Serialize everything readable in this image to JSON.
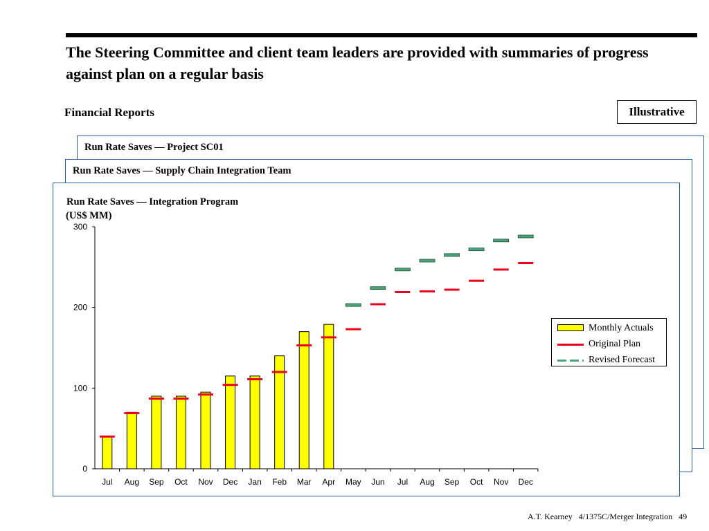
{
  "header": {
    "title": "The Steering Committee and client team leaders are provided with summaries of progress against plan on a regular basis",
    "section": "Financial Reports",
    "badge": "Illustrative"
  },
  "cards": {
    "back_title": "Run Rate Saves — Project SC01",
    "mid_title": "Run Rate Saves — Supply Chain Integration Team",
    "front_title": "Run Rate Saves — Integration Program"
  },
  "chart_data": {
    "type": "bar",
    "title": "Run Rate Saves — Integration Program",
    "ylabel": "(US$ MM)",
    "xlabel": "",
    "ylim": [
      0,
      300
    ],
    "yticks": [
      0,
      100,
      200,
      300
    ],
    "grid": false,
    "legend_position": "right",
    "categories": [
      "Jul",
      "Aug",
      "Sep",
      "Oct",
      "Nov",
      "Dec",
      "Jan",
      "Feb",
      "Mar",
      "Apr",
      "May",
      "Jun",
      "Jul",
      "Aug",
      "Sep",
      "Oct",
      "Nov",
      "Dec"
    ],
    "series": [
      {
        "name": "Monthly Actuals",
        "type": "bar",
        "color": "#ffff00",
        "values": [
          40,
          70,
          90,
          90,
          95,
          115,
          115,
          140,
          170,
          179,
          null,
          null,
          null,
          null,
          null,
          null,
          null,
          null
        ]
      },
      {
        "name": "Original Plan",
        "type": "dash-marker",
        "color": "#e8001c",
        "values": [
          40,
          69,
          87,
          87,
          92,
          104,
          111,
          120,
          153,
          163,
          173,
          204,
          219,
          220,
          222,
          233,
          247,
          255
        ]
      },
      {
        "name": "Revised Forecast",
        "type": "dash-marker",
        "color": "#4ca47a",
        "values": [
          null,
          null,
          null,
          null,
          null,
          null,
          null,
          null,
          null,
          null,
          203,
          224,
          247,
          258,
          265,
          272,
          283,
          288
        ]
      }
    ]
  },
  "footer": {
    "company": "A.T. Kearney",
    "doc_code": "4/1375C/Merger Integration",
    "page_number": "49"
  }
}
